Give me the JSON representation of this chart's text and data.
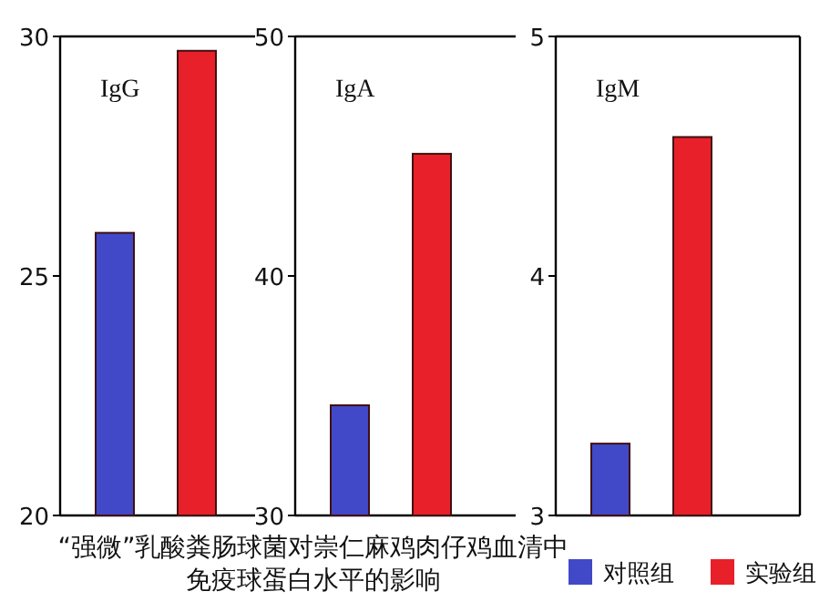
{
  "chart_data": [
    {
      "type": "bar",
      "title": "“强微”乳酸粪肠球菌对崇仁麻鸡肉仔鸡血清中免疫球蛋白水平的影响",
      "annotations": [
        "IgG"
      ],
      "categories": [
        null
      ],
      "ylim": [
        20,
        30
      ],
      "yticks": [
        20,
        25,
        30
      ],
      "series": [
        {
          "color": "#4149c8",
          "values": [
            25.9
          ]
        },
        {
          "color": "#e8202a",
          "values": [
            29.7
          ]
        }
      ]
    },
    {
      "type": "bar",
      "annotations": [
        "IgA"
      ],
      "categories": [
        null
      ],
      "ylim": [
        30,
        50
      ],
      "yticks": [
        30,
        40,
        50
      ],
      "series": [
        {
          "color": "#4149c8",
          "values": [
            34.6
          ]
        },
        {
          "color": "#e8202a",
          "values": [
            45.1
          ]
        }
      ]
    },
    {
      "type": "bar",
      "annotations": [
        "IgM"
      ],
      "categories": [
        null
      ],
      "ylim": [
        3,
        5
      ],
      "yticks": [
        3,
        4,
        5
      ],
      "legend": "bottom right",
      "series": [
        {
          "name": "对照组",
          "color": "#4149c8",
          "values": [
            3.3
          ]
        },
        {
          "name": "实验组",
          "color": "#e8202a",
          "values": [
            4.58
          ]
        }
      ]
    }
  ]
}
